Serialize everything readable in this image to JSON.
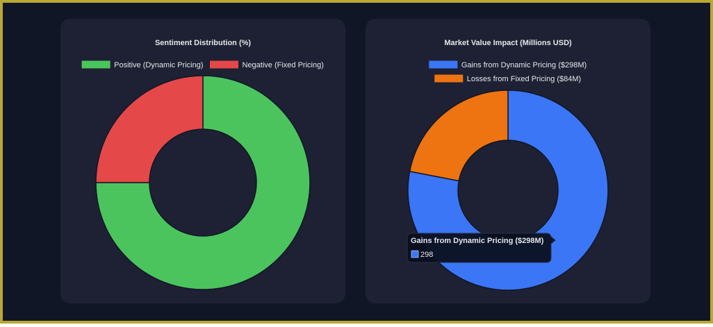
{
  "chart_data": [
    {
      "type": "doughnut",
      "title": "Sentiment Distribution (%)",
      "categories": [
        "Positive (Dynamic Pricing)",
        "Negative (Fixed Pricing)"
      ],
      "values": [
        75,
        25
      ],
      "colors": [
        "#4bc45e",
        "#e54848"
      ]
    },
    {
      "type": "doughnut",
      "title": "Market Value Impact (Millions USD)",
      "categories": [
        "Gains from Dynamic Pricing ($298M)",
        "Losses from Fixed Pricing ($84M)"
      ],
      "values": [
        298,
        84
      ],
      "colors": [
        "#3b76f6",
        "#ee7411"
      ]
    }
  ]
}
